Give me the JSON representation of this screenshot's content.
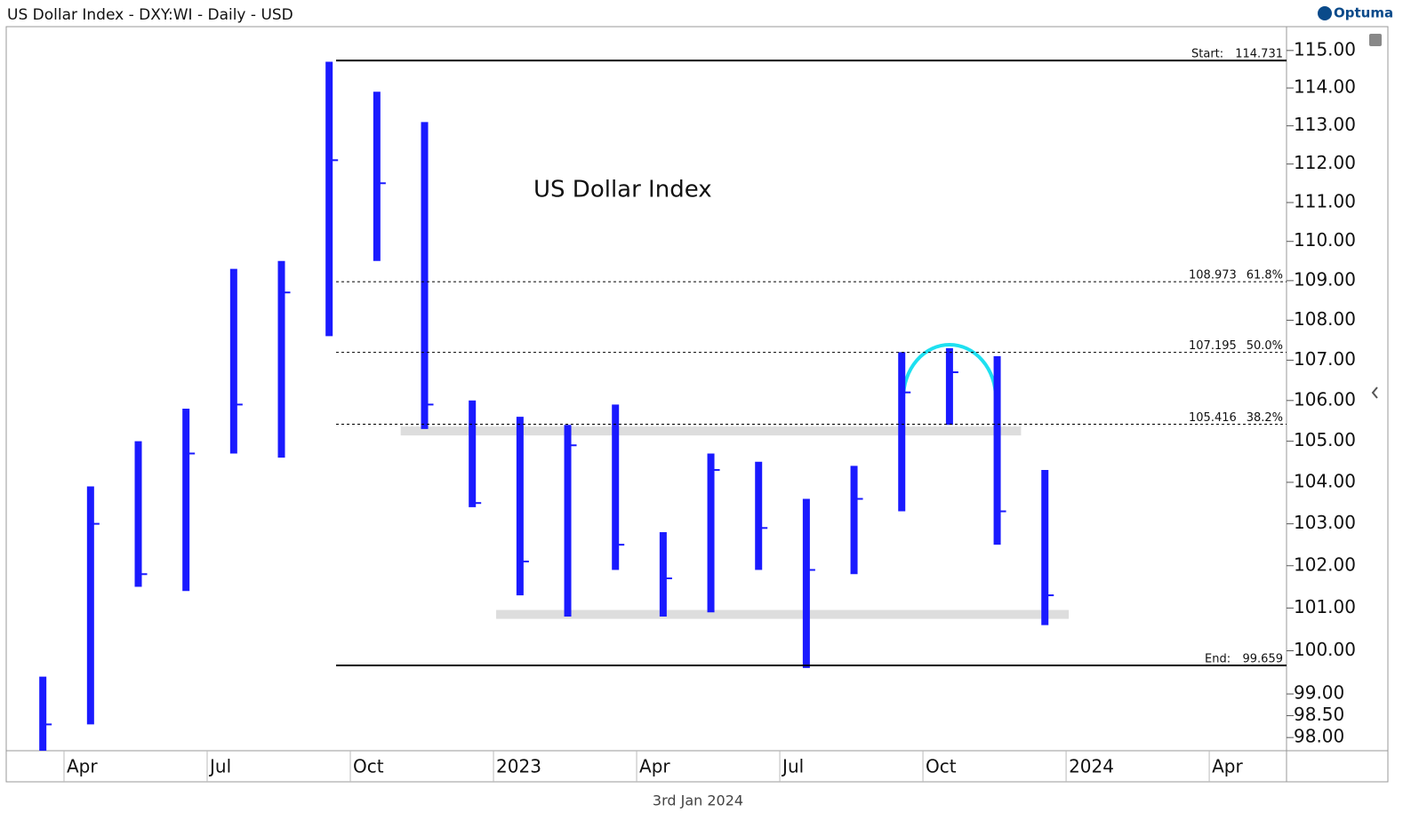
{
  "chart_data": {
    "type": "ohlc",
    "title": "US Dollar Index - DXY:WI - Daily - USD",
    "brand": "Optuma",
    "annotation": "US Dollar Index",
    "date_label": "3rd Jan 2024",
    "log_scale": true,
    "color": "#1a1aff",
    "ylim": [
      97.7,
      115.64
    ],
    "yticks": [
      {
        "value": 98,
        "label": "98.00"
      },
      {
        "value": 98.5,
        "label": "98.50"
      },
      {
        "value": 99,
        "label": "99.00"
      },
      {
        "value": 100,
        "label": "100.00"
      },
      {
        "value": 101,
        "label": "101.00"
      },
      {
        "value": 102,
        "label": "102.00"
      },
      {
        "value": 103,
        "label": "103.00"
      },
      {
        "value": 104,
        "label": "104.00"
      },
      {
        "value": 105,
        "label": "105.00"
      },
      {
        "value": 106,
        "label": "106.00"
      },
      {
        "value": 107,
        "label": "107.00"
      },
      {
        "value": 108,
        "label": "108.00"
      },
      {
        "value": 109,
        "label": "109.00"
      },
      {
        "value": 110,
        "label": "110.00"
      },
      {
        "value": 111,
        "label": "111.00"
      },
      {
        "value": 112,
        "label": "112.00"
      },
      {
        "value": 113,
        "label": "113.00"
      },
      {
        "value": 114,
        "label": "114.00"
      },
      {
        "value": 115,
        "label": "115.00"
      }
    ],
    "xticks": [
      {
        "value": "2022-04",
        "label": "Apr"
      },
      {
        "value": "2022-07",
        "label": "Jul"
      },
      {
        "value": "2022-10",
        "label": "Oct"
      },
      {
        "value": "2023-01",
        "label": "2023"
      },
      {
        "value": "2023-04",
        "label": "Apr"
      },
      {
        "value": "2023-07",
        "label": "Jul"
      },
      {
        "value": "2023-10",
        "label": "Oct"
      },
      {
        "value": "2024-01",
        "label": "2024"
      },
      {
        "value": "2024-04",
        "label": "Apr"
      }
    ],
    "x": [
      "2022-03",
      "2022-04",
      "2022-05",
      "2022-06",
      "2022-07",
      "2022-08",
      "2022-09",
      "2022-10",
      "2022-11",
      "2022-12",
      "2023-01",
      "2023-02",
      "2023-03",
      "2023-04",
      "2023-05",
      "2023-06",
      "2023-07",
      "2023-08",
      "2023-09",
      "2023-10",
      "2023-11",
      "2023-12"
    ],
    "series": [
      {
        "high": [
          99.4,
          103.9,
          105.0,
          105.8,
          109.3,
          109.5,
          114.7,
          113.9,
          113.1,
          106.0,
          105.6,
          105.4,
          105.9,
          102.8,
          104.7,
          104.5,
          103.6,
          104.4,
          107.2,
          107.3,
          107.1,
          104.3
        ],
        "low": [
          97.7,
          98.3,
          101.5,
          101.4,
          104.7,
          104.6,
          107.6,
          109.5,
          105.3,
          103.4,
          101.3,
          100.8,
          101.9,
          100.8,
          100.9,
          101.9,
          99.6,
          101.8,
          103.3,
          105.4,
          102.5,
          100.6
        ],
        "values": [
          98.3,
          103.0,
          101.8,
          104.7,
          105.9,
          108.7,
          112.1,
          111.5,
          105.9,
          103.5,
          102.1,
          104.9,
          102.5,
          101.7,
          104.3,
          102.9,
          101.9,
          103.6,
          106.2,
          106.7,
          103.3,
          101.3
        ]
      }
    ],
    "fib_start": {
      "label": "Start:",
      "value": 114.731
    },
    "fib_end": {
      "label": "End:",
      "value": 99.659
    },
    "fib_levels": [
      {
        "value": 108.973,
        "label": "61.8%"
      },
      {
        "value": 107.195,
        "label": "50.0%"
      },
      {
        "value": 105.416,
        "label": "38.2%"
      }
    ],
    "zones": [
      {
        "value": 105.25,
        "from": "2022-11",
        "to": "2023-11"
      },
      {
        "value": 100.85,
        "from": "2023-01",
        "to": "2023-12"
      }
    ]
  }
}
